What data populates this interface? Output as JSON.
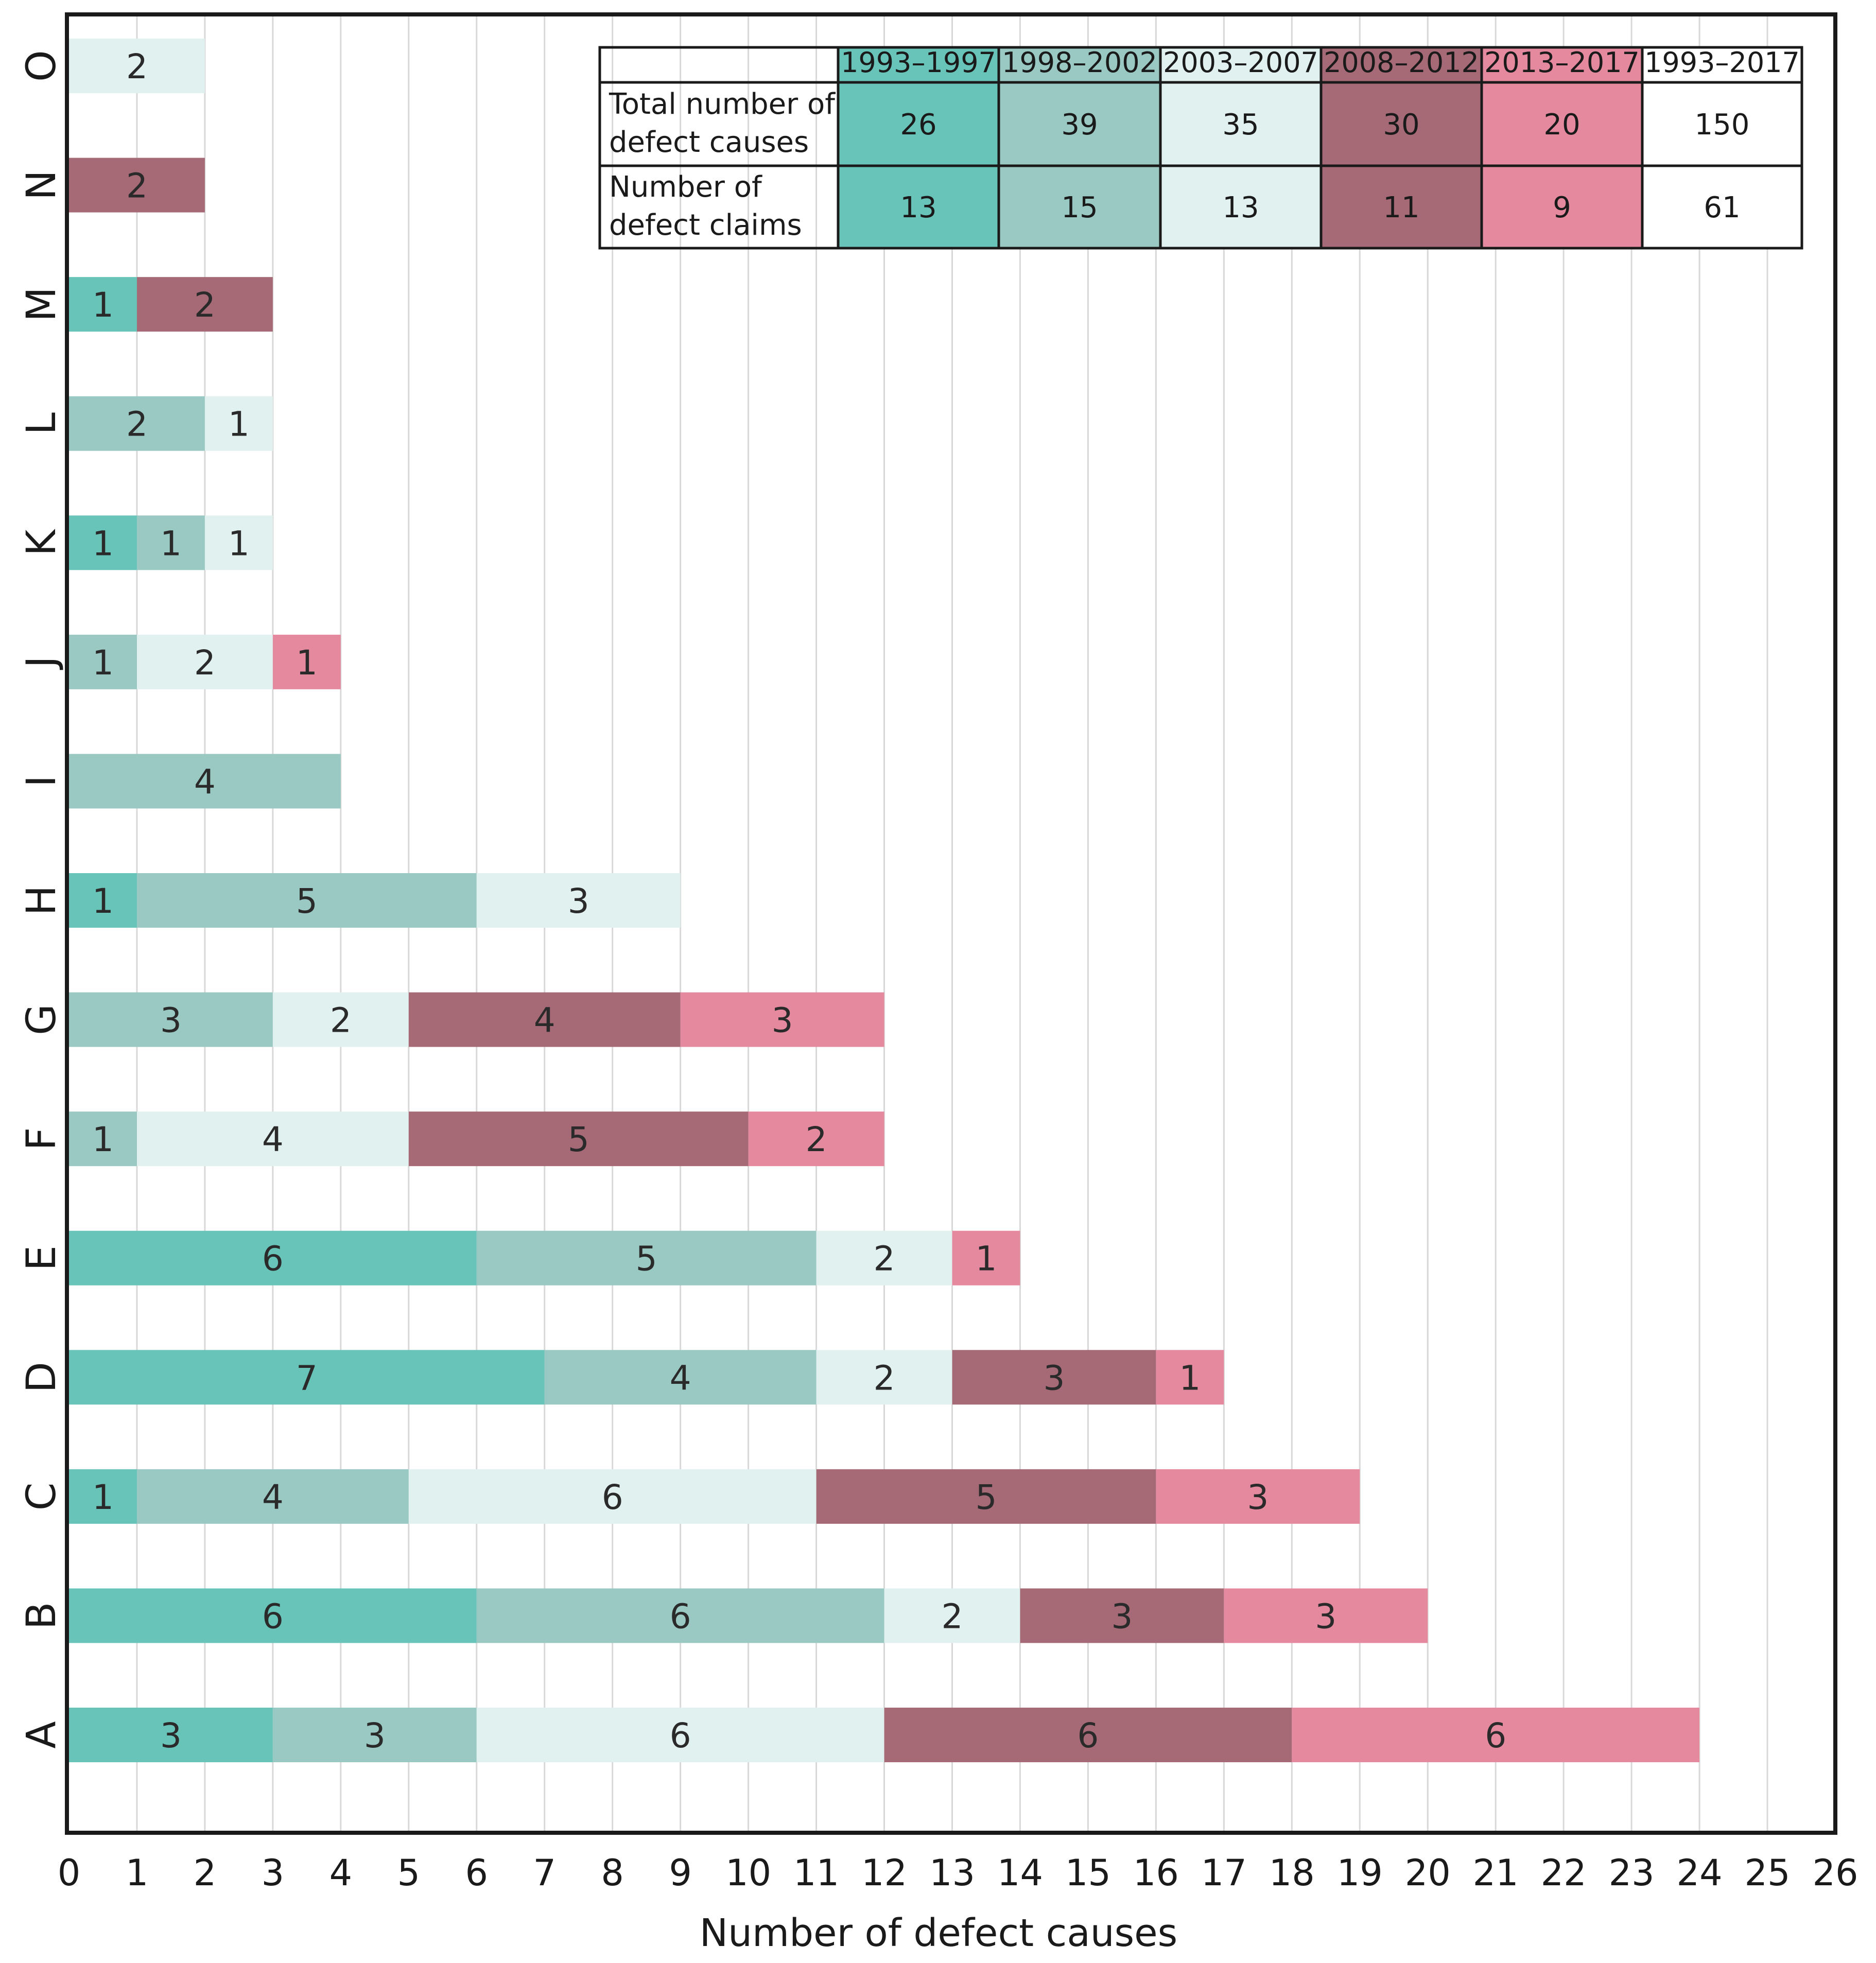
{
  "chart_data": {
    "type": "bar",
    "orientation": "horizontal",
    "stacked": true,
    "xlabel": "Number of defect causes",
    "ylabel": "",
    "xlim": [
      0,
      26
    ],
    "x_ticks": [
      0,
      1,
      2,
      3,
      4,
      5,
      6,
      7,
      8,
      9,
      10,
      11,
      12,
      13,
      14,
      15,
      16,
      17,
      18,
      19,
      20,
      21,
      22,
      23,
      24,
      25,
      26
    ],
    "grid": "vertical",
    "categories": [
      "A",
      "B",
      "C",
      "D",
      "E",
      "F",
      "G",
      "H",
      "I",
      "J",
      "K",
      "L",
      "M",
      "N",
      "O"
    ],
    "series": [
      {
        "name": "1993–1997",
        "color": "#68c4b9",
        "values": [
          3,
          6,
          1,
          7,
          6,
          0,
          0,
          1,
          0,
          0,
          1,
          0,
          1,
          0,
          0
        ]
      },
      {
        "name": "1998–2002",
        "color": "#9ac8c2",
        "values": [
          3,
          6,
          4,
          4,
          5,
          1,
          3,
          5,
          4,
          1,
          1,
          2,
          0,
          0,
          0
        ]
      },
      {
        "name": "2003–2007",
        "color": "#e1f1ef",
        "values": [
          6,
          2,
          6,
          2,
          2,
          4,
          2,
          3,
          0,
          2,
          1,
          1,
          0,
          0,
          2
        ]
      },
      {
        "name": "2008–2012",
        "color": "#a56a76",
        "values": [
          6,
          3,
          5,
          3,
          0,
          5,
          4,
          0,
          0,
          0,
          0,
          0,
          2,
          2,
          0
        ]
      },
      {
        "name": "2013–2017",
        "color": "#e5899f",
        "values": [
          6,
          3,
          3,
          1,
          1,
          2,
          3,
          0,
          0,
          1,
          0,
          0,
          0,
          0,
          0
        ]
      }
    ],
    "summary_table": {
      "columns": [
        "1993–1997",
        "1998–2002",
        "2003–2007",
        "2008–2012",
        "2013–2017",
        "1993–2017"
      ],
      "column_colors": [
        "#68c4b9",
        "#9ac8c2",
        "#e1f1ef",
        "#a56a76",
        "#e5899f",
        "#ffffff"
      ],
      "rows": [
        {
          "label_lines": [
            "Total number of",
            "defect causes"
          ],
          "values": [
            "26",
            "39",
            "35",
            "30",
            "20",
            "150"
          ]
        },
        {
          "label_lines": [
            "Number of",
            "defect claims"
          ],
          "values": [
            "13",
            "15",
            "13",
            "11",
            "9",
            "61"
          ]
        }
      ]
    }
  }
}
